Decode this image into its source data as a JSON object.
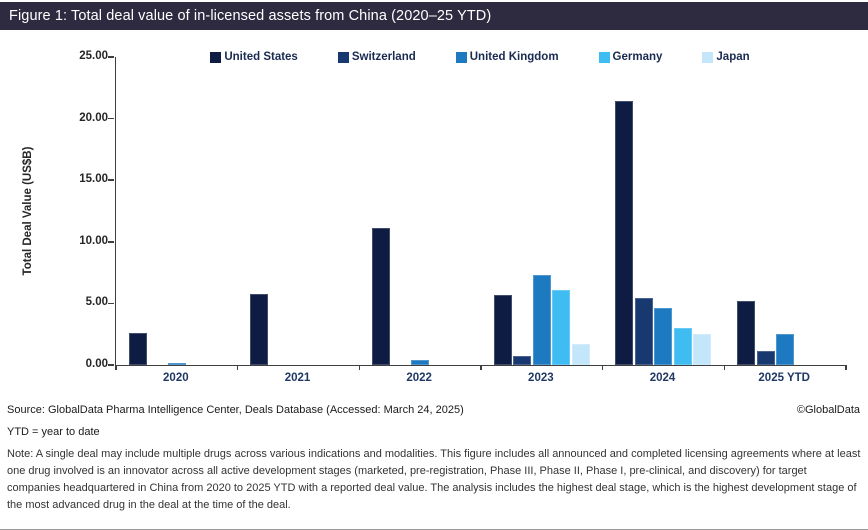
{
  "title_bar": {
    "text": "Figure 1: Total deal value of in-licensed assets from China (2020–25 YTD)",
    "bg_color": "#2e2a40"
  },
  "chart_data": {
    "type": "bar",
    "title": "Total deal value of in-licensed assets from China (2020–25 YTD)",
    "categories": [
      "2020",
      "2021",
      "2022",
      "2023",
      "2024",
      "2025 YTD"
    ],
    "series": [
      {
        "name": "United States",
        "color": "#0e1c44",
        "values": [
          2.6,
          5.8,
          11.1,
          5.7,
          21.4,
          5.2
        ]
      },
      {
        "name": "Switzerland",
        "color": "#183870",
        "values": [
          0,
          0,
          0,
          0.7,
          5.4,
          1.1
        ]
      },
      {
        "name": "United Kingdom",
        "color": "#1e7ac0",
        "values": [
          0.15,
          0,
          0.4,
          7.3,
          4.6,
          2.5
        ]
      },
      {
        "name": "Germany",
        "color": "#3fbdf2",
        "values": [
          0,
          0,
          0,
          6.1,
          3.0,
          0
        ]
      },
      {
        "name": "Japan",
        "color": "#c4e6fa",
        "values": [
          0,
          0,
          0,
          1.7,
          2.5,
          0
        ]
      }
    ],
    "xlabel": "",
    "ylabel": "Total Deal Value (US$B)",
    "ylim": [
      0,
      25
    ],
    "ytick_step": 5,
    "ytick_labels": [
      "0.00",
      "5.00",
      "10.00",
      "15.00",
      "20.00",
      "25.00"
    ],
    "legend_position": "top",
    "grid": false
  },
  "footer": {
    "source": "Source: GlobalData Pharma Intelligence Center, Deals Database (Accessed: March 24, 2025)",
    "copyright": "©GlobalData",
    "ytd_note": "YTD = year to date",
    "note": "Note: A single deal may include multiple drugs across various indications and modalities. This figure includes all announced and completed licensing agreements where at least one drug involved is an innovator across all active development stages (marketed, pre-registration, Phase III, Phase II, Phase I, pre-clinical, and discovery) for target companies headquartered in China from 2020 to 2025 YTD with a reported deal value. The analysis includes the highest deal stage, which is the highest development stage of the most advanced drug in the deal at the time of the deal."
  }
}
